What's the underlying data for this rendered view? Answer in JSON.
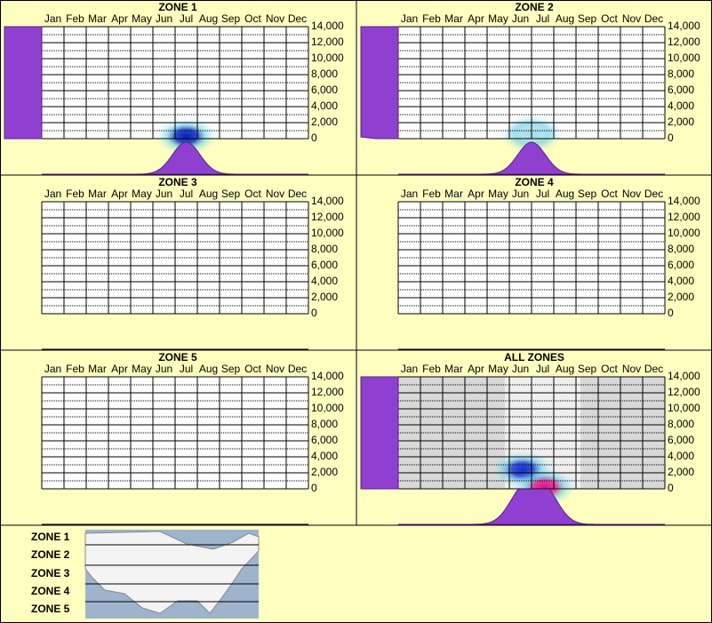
{
  "months": [
    "Jan",
    "Feb",
    "Mar",
    "Apr",
    "May",
    "Jun",
    "Jul",
    "Aug",
    "Sep",
    "Oct",
    "Nov",
    "Dec"
  ],
  "ylim": [
    0,
    14000
  ],
  "yticks": [
    {
      "value": 0,
      "label": "0"
    },
    {
      "value": 2000,
      "label": "2,000"
    },
    {
      "value": 4000,
      "label": "4,000"
    },
    {
      "value": 6000,
      "label": "6,000"
    },
    {
      "value": 8000,
      "label": "8,000"
    },
    {
      "value": 10000,
      "label": "10,000"
    },
    {
      "value": 12000,
      "label": "12,000"
    },
    {
      "value": 14000,
      "label": "14,000"
    }
  ],
  "panels": [
    {
      "title": "ZONE 1",
      "hotspots": [
        {
          "month": 7.0,
          "elevation": 300,
          "color": "#0020c0"
        }
      ]
    },
    {
      "title": "ZONE 2",
      "hotspots": [
        {
          "month": 6.5,
          "elevation": 600,
          "color": "#a0dcec"
        }
      ]
    },
    {
      "title": "ZONE 3",
      "hotspots": []
    },
    {
      "title": "ZONE 4",
      "hotspots": []
    },
    {
      "title": "ZONE 5",
      "hotspots": []
    },
    {
      "title": "ALL ZONES",
      "shaded": true,
      "hotspots": [
        {
          "month": 6.1,
          "elevation": 2400,
          "color": "#1030d0"
        },
        {
          "month": 7.1,
          "elevation": 200,
          "color": "#e0108a"
        }
      ]
    }
  ],
  "legend": {
    "zones": [
      "ZONE 1",
      "ZONE 2",
      "ZONE 3",
      "ZONE 4",
      "ZONE 5"
    ]
  }
}
